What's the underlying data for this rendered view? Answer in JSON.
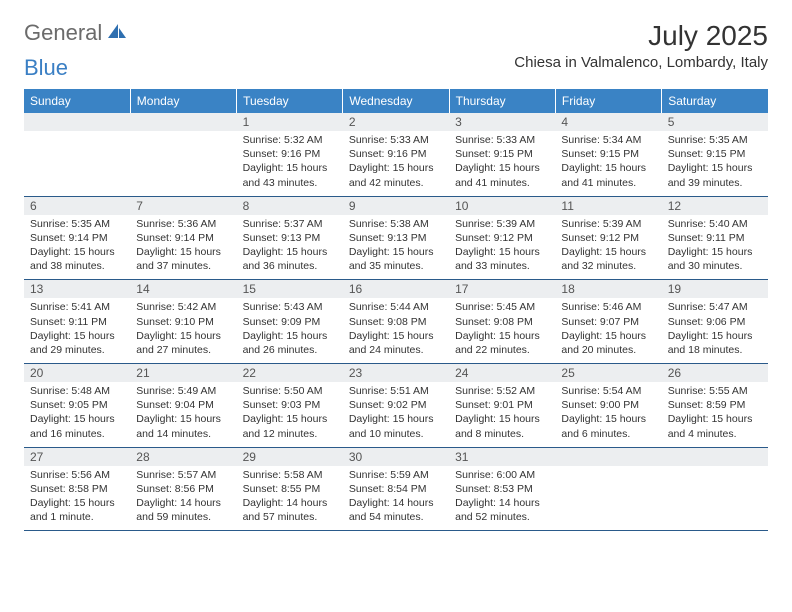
{
  "brand": {
    "general": "General",
    "blue": "Blue"
  },
  "title": "July 2025",
  "location": "Chiesa in Valmalenco, Lombardy, Italy",
  "colors": {
    "header_bg": "#3a83c5",
    "header_text": "#ffffff",
    "daynum_bg": "#eceef0",
    "border": "#2a5a8a",
    "logo_gray": "#6b6b6b",
    "logo_blue": "#3a7fc4"
  },
  "daynames": [
    "Sunday",
    "Monday",
    "Tuesday",
    "Wednesday",
    "Thursday",
    "Friday",
    "Saturday"
  ],
  "weeks": [
    {
      "nums": [
        "",
        "",
        "1",
        "2",
        "3",
        "4",
        "5"
      ],
      "cells": [
        null,
        null,
        {
          "sunrise": "5:32 AM",
          "sunset": "9:16 PM",
          "daylight": "15 hours and 43 minutes."
        },
        {
          "sunrise": "5:33 AM",
          "sunset": "9:16 PM",
          "daylight": "15 hours and 42 minutes."
        },
        {
          "sunrise": "5:33 AM",
          "sunset": "9:15 PM",
          "daylight": "15 hours and 41 minutes."
        },
        {
          "sunrise": "5:34 AM",
          "sunset": "9:15 PM",
          "daylight": "15 hours and 41 minutes."
        },
        {
          "sunrise": "5:35 AM",
          "sunset": "9:15 PM",
          "daylight": "15 hours and 39 minutes."
        }
      ]
    },
    {
      "nums": [
        "6",
        "7",
        "8",
        "9",
        "10",
        "11",
        "12"
      ],
      "cells": [
        {
          "sunrise": "5:35 AM",
          "sunset": "9:14 PM",
          "daylight": "15 hours and 38 minutes."
        },
        {
          "sunrise": "5:36 AM",
          "sunset": "9:14 PM",
          "daylight": "15 hours and 37 minutes."
        },
        {
          "sunrise": "5:37 AM",
          "sunset": "9:13 PM",
          "daylight": "15 hours and 36 minutes."
        },
        {
          "sunrise": "5:38 AM",
          "sunset": "9:13 PM",
          "daylight": "15 hours and 35 minutes."
        },
        {
          "sunrise": "5:39 AM",
          "sunset": "9:12 PM",
          "daylight": "15 hours and 33 minutes."
        },
        {
          "sunrise": "5:39 AM",
          "sunset": "9:12 PM",
          "daylight": "15 hours and 32 minutes."
        },
        {
          "sunrise": "5:40 AM",
          "sunset": "9:11 PM",
          "daylight": "15 hours and 30 minutes."
        }
      ]
    },
    {
      "nums": [
        "13",
        "14",
        "15",
        "16",
        "17",
        "18",
        "19"
      ],
      "cells": [
        {
          "sunrise": "5:41 AM",
          "sunset": "9:11 PM",
          "daylight": "15 hours and 29 minutes."
        },
        {
          "sunrise": "5:42 AM",
          "sunset": "9:10 PM",
          "daylight": "15 hours and 27 minutes."
        },
        {
          "sunrise": "5:43 AM",
          "sunset": "9:09 PM",
          "daylight": "15 hours and 26 minutes."
        },
        {
          "sunrise": "5:44 AM",
          "sunset": "9:08 PM",
          "daylight": "15 hours and 24 minutes."
        },
        {
          "sunrise": "5:45 AM",
          "sunset": "9:08 PM",
          "daylight": "15 hours and 22 minutes."
        },
        {
          "sunrise": "5:46 AM",
          "sunset": "9:07 PM",
          "daylight": "15 hours and 20 minutes."
        },
        {
          "sunrise": "5:47 AM",
          "sunset": "9:06 PM",
          "daylight": "15 hours and 18 minutes."
        }
      ]
    },
    {
      "nums": [
        "20",
        "21",
        "22",
        "23",
        "24",
        "25",
        "26"
      ],
      "cells": [
        {
          "sunrise": "5:48 AM",
          "sunset": "9:05 PM",
          "daylight": "15 hours and 16 minutes."
        },
        {
          "sunrise": "5:49 AM",
          "sunset": "9:04 PM",
          "daylight": "15 hours and 14 minutes."
        },
        {
          "sunrise": "5:50 AM",
          "sunset": "9:03 PM",
          "daylight": "15 hours and 12 minutes."
        },
        {
          "sunrise": "5:51 AM",
          "sunset": "9:02 PM",
          "daylight": "15 hours and 10 minutes."
        },
        {
          "sunrise": "5:52 AM",
          "sunset": "9:01 PM",
          "daylight": "15 hours and 8 minutes."
        },
        {
          "sunrise": "5:54 AM",
          "sunset": "9:00 PM",
          "daylight": "15 hours and 6 minutes."
        },
        {
          "sunrise": "5:55 AM",
          "sunset": "8:59 PM",
          "daylight": "15 hours and 4 minutes."
        }
      ]
    },
    {
      "nums": [
        "27",
        "28",
        "29",
        "30",
        "31",
        "",
        ""
      ],
      "cells": [
        {
          "sunrise": "5:56 AM",
          "sunset": "8:58 PM",
          "daylight": "15 hours and 1 minute."
        },
        {
          "sunrise": "5:57 AM",
          "sunset": "8:56 PM",
          "daylight": "14 hours and 59 minutes."
        },
        {
          "sunrise": "5:58 AM",
          "sunset": "8:55 PM",
          "daylight": "14 hours and 57 minutes."
        },
        {
          "sunrise": "5:59 AM",
          "sunset": "8:54 PM",
          "daylight": "14 hours and 54 minutes."
        },
        {
          "sunrise": "6:00 AM",
          "sunset": "8:53 PM",
          "daylight": "14 hours and 52 minutes."
        },
        null,
        null
      ]
    }
  ]
}
